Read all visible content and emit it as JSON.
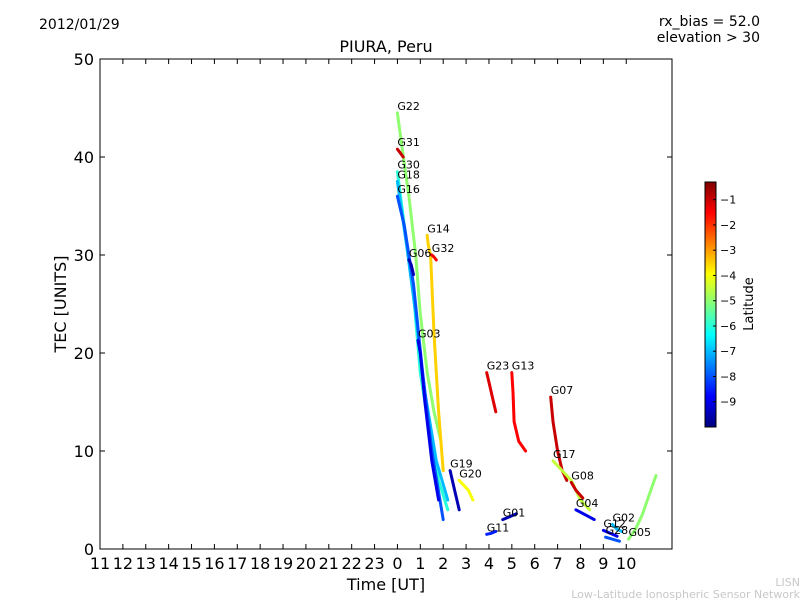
{
  "header": {
    "date": "2012/01/29",
    "rx_bias": "rx_bias = 52.0",
    "elevation": "elevation > 30"
  },
  "credits": {
    "short": "LISN",
    "long": "Low-Latitude Ionospheric Sensor Network"
  },
  "colors": {
    "scale": [
      "#00007f",
      "#0000ff",
      "#007fff",
      "#00ffff",
      "#7fff7f",
      "#ffff00",
      "#ff7f00",
      "#ff0000",
      "#7f0000"
    ],
    "green": "#00c000"
  },
  "chart_data": {
    "type": "line",
    "title": "PIURA, Peru",
    "xlabel": "Time [UT]",
    "ylabel": "TEC [UNITS]",
    "ylim": [
      0,
      50
    ],
    "xlim_hours_from_11UT": [
      0,
      25
    ],
    "x_tick_labels": [
      "11",
      "12",
      "13",
      "14",
      "15",
      "16",
      "17",
      "18",
      "19",
      "20",
      "21",
      "22",
      "23",
      "0",
      "1",
      "2",
      "3",
      "4",
      "5",
      "6",
      "7",
      "8",
      "9",
      "10"
    ],
    "y_ticks": [
      0,
      10,
      20,
      30,
      40,
      50
    ],
    "grid": false,
    "colorbar": {
      "label": "Latitude",
      "range": [
        -10,
        -0.3
      ],
      "ticks": [
        -1,
        -2,
        -3,
        -4,
        -5,
        -6,
        -7,
        -8,
        -9
      ]
    },
    "series": [
      {
        "name": "G22",
        "lat": -5.0,
        "x": [
          13.0,
          13.2,
          13.5,
          13.8,
          14.0,
          14.3,
          14.6,
          14.9
        ],
        "y": [
          44.5,
          41,
          36,
          30,
          24,
          18,
          14,
          11
        ]
      },
      {
        "name": "G31",
        "lat": -1.0,
        "x": [
          13.0,
          13.1,
          13.25
        ],
        "y": [
          40.8,
          40.5,
          40.0
        ]
      },
      {
        "name": "G30",
        "lat": -6.0,
        "x": [
          13.0,
          13.3,
          13.7,
          14.0,
          14.4,
          14.8,
          15.2
        ],
        "y": [
          38.5,
          33,
          26,
          18,
          12,
          7,
          4
        ]
      },
      {
        "name": "G18",
        "lat": -7.0,
        "x": [
          13.0,
          13.4,
          13.8,
          14.2,
          14.7,
          15.2
        ],
        "y": [
          37.5,
          31,
          24,
          16,
          9,
          5
        ]
      },
      {
        "name": "G16",
        "lat": -8.0,
        "x": [
          13.0,
          13.3,
          13.7,
          14.1,
          14.5,
          15.0
        ],
        "y": [
          36.0,
          33,
          27,
          18,
          10,
          3
        ]
      },
      {
        "name": "G14",
        "lat": -3.5,
        "x": [
          14.3,
          14.35,
          14.45,
          14.6,
          14.8,
          15.0
        ],
        "y": [
          32.0,
          31,
          30,
          22,
          14,
          8
        ]
      },
      {
        "name": "G06",
        "lat": -9.5,
        "x": [
          13.5,
          13.6,
          13.7
        ],
        "y": [
          29.5,
          29,
          28
        ]
      },
      {
        "name": "G32",
        "lat": -1.5,
        "x": [
          14.5,
          14.6,
          14.7
        ],
        "y": [
          30.0,
          29.8,
          29.5
        ]
      },
      {
        "name": "G03",
        "lat": -9.0,
        "x": [
          13.9,
          14.0,
          14.2,
          14.5,
          14.8
        ],
        "y": [
          21.3,
          20,
          15,
          9,
          5
        ]
      },
      {
        "name": "G23",
        "lat": -1.2,
        "x": [
          16.9,
          17.0,
          17.2,
          17.3
        ],
        "y": [
          18.0,
          17,
          15,
          14
        ]
      },
      {
        "name": "G13",
        "lat": -1.5,
        "x": [
          18.0,
          18.05,
          18.1,
          18.3,
          18.6
        ],
        "y": [
          18.0,
          16,
          13,
          11,
          10
        ]
      },
      {
        "name": "G07",
        "lat": -1.0,
        "x": [
          19.7,
          19.8,
          20.0,
          20.2,
          20.4
        ],
        "y": [
          15.5,
          13,
          10,
          8,
          7
        ]
      },
      {
        "name": "G19",
        "lat": -9.5,
        "x": [
          15.3,
          15.5,
          15.7
        ],
        "y": [
          8.0,
          6,
          4
        ]
      },
      {
        "name": "G20",
        "lat": -4.0,
        "x": [
          15.7,
          15.9,
          16.1,
          16.3
        ],
        "y": [
          7.0,
          6.5,
          6,
          5
        ]
      },
      {
        "name": "G17",
        "lat": -4.5,
        "x": [
          19.8,
          20.2,
          20.6,
          21.0,
          21.4
        ],
        "y": [
          9.0,
          8,
          7,
          5,
          4
        ]
      },
      {
        "name": "G08",
        "lat": -1.0,
        "x": [
          20.6,
          20.8,
          21.1
        ],
        "y": [
          6.8,
          6,
          5.2
        ]
      },
      {
        "name": "G04",
        "lat": -9.0,
        "x": [
          20.8,
          21.2,
          21.6
        ],
        "y": [
          4.0,
          3.5,
          3.0
        ]
      },
      {
        "name": "G01",
        "lat": -9.5,
        "x": [
          17.6,
          17.9,
          18.2
        ],
        "y": [
          3.0,
          3.3,
          3.6
        ]
      },
      {
        "name": "G11",
        "lat": -8.5,
        "x": [
          16.9,
          17.1,
          17.3
        ],
        "y": [
          1.5,
          1.6,
          1.8
        ]
      },
      {
        "name": "G12",
        "lat": -9.0,
        "x": [
          22.0,
          22.3,
          22.6
        ],
        "y": [
          1.9,
          1.6,
          1.3
        ]
      },
      {
        "name": "G02",
        "lat": -7.0,
        "x": [
          22.4,
          22.6,
          22.8
        ],
        "y": [
          2.5,
          2.0,
          1.8
        ]
      },
      {
        "name": "G28",
        "lat": -8.0,
        "x": [
          22.1,
          22.4,
          22.7
        ],
        "y": [
          1.2,
          1.0,
          0.8
        ]
      },
      {
        "name": "G05",
        "lat": -5.0,
        "x": [
          23.1,
          23.4,
          23.7,
          24.0,
          24.3
        ],
        "y": [
          1.0,
          2.0,
          3.5,
          5.5,
          7.5
        ]
      }
    ]
  }
}
